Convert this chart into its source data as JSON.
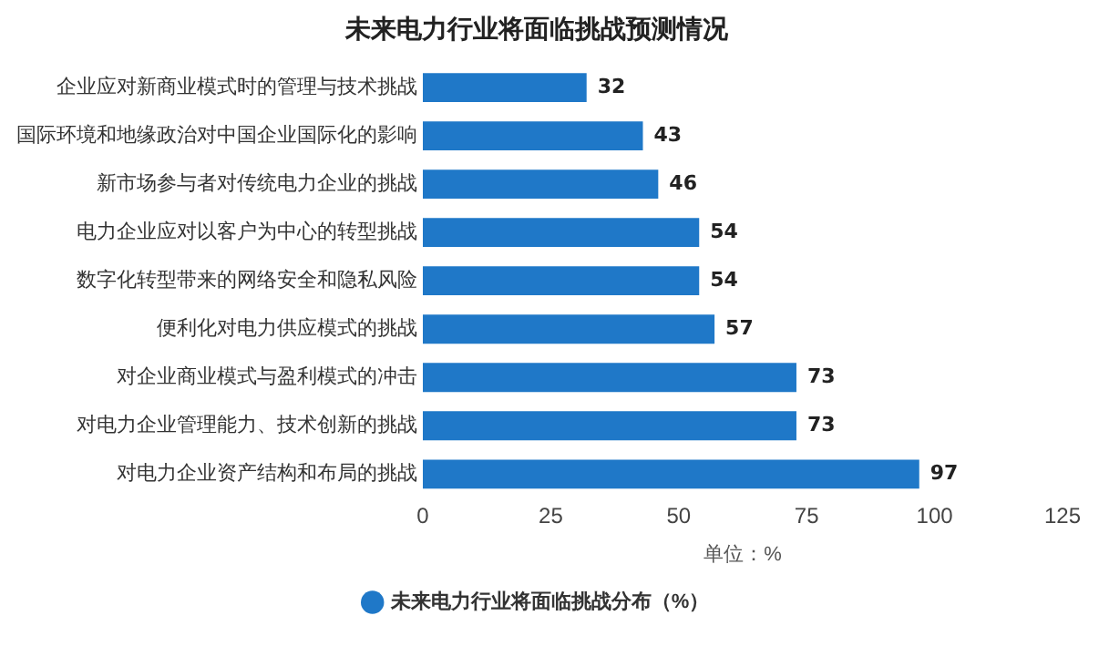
{
  "chart_data": {
    "type": "bar",
    "orientation": "horizontal",
    "title": "未来电力行业将面临挑战预测情况",
    "categories": [
      "企业应对新商业模式时的管理与技术挑战",
      "国际环境和地缘政治对中国企业国际化的影响",
      "新市场参与者对传统电力企业的挑战",
      "电力企业应对以客户为中心的转型挑战",
      "数字化转型带来的网络安全和隐私风险",
      "便利化对电力供应模式的挑战",
      "对企业商业模式与盈利模式的冲击",
      "对电力企业管理能力、技术创新的挑战",
      "对电力企业资产结构和布局的挑战"
    ],
    "series": [
      {
        "name": "未来电力行业将面临挑战分布（%）",
        "color": "#1f78c8",
        "values": [
          32,
          43,
          46,
          54,
          54,
          57,
          73,
          73,
          97
        ]
      }
    ],
    "xlabel": "单位：%",
    "xlim": [
      0,
      125
    ],
    "xticks": [
      0,
      25,
      50,
      75,
      100,
      125
    ],
    "data_labels": true,
    "legend": "bottom",
    "grid": false
  }
}
